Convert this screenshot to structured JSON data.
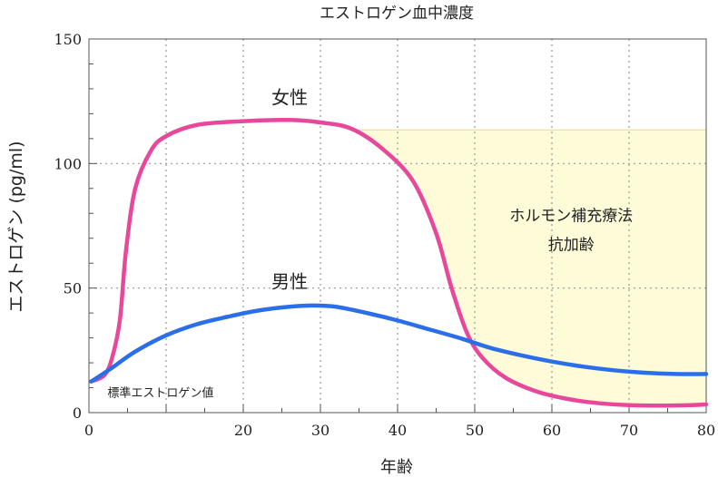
{
  "chart_data": {
    "type": "line",
    "title": "エストロゲン血中濃度",
    "xlabel": "年齢",
    "ylabel": "エストロゲン (pg/ml)",
    "xlim": [
      0,
      80
    ],
    "ylim": [
      0,
      150
    ],
    "x_ticks": [
      0,
      10,
      20,
      30,
      40,
      50,
      60,
      70,
      80
    ],
    "x_tick_labels": [
      "0",
      "",
      "20",
      "30",
      "40",
      "50",
      "60",
      "70",
      "80"
    ],
    "y_ticks": [
      0,
      50,
      100,
      150
    ],
    "grid": true,
    "series": [
      {
        "name": "女性",
        "color": "#e8489a",
        "points": [
          [
            0.3,
            12.5
          ],
          [
            2,
            15
          ],
          [
            3,
            22
          ],
          [
            4,
            37
          ],
          [
            4.8,
            65
          ],
          [
            6,
            90
          ],
          [
            8,
            105
          ],
          [
            10,
            111
          ],
          [
            14,
            115.5
          ],
          [
            20,
            117
          ],
          [
            26,
            117.5
          ],
          [
            30,
            116.5
          ],
          [
            34,
            114
          ],
          [
            38,
            106
          ],
          [
            42,
            93
          ],
          [
            45,
            72
          ],
          [
            47,
            50
          ],
          [
            49,
            32
          ],
          [
            51,
            22
          ],
          [
            54,
            14
          ],
          [
            58,
            8.5
          ],
          [
            62,
            5.5
          ],
          [
            66,
            3.8
          ],
          [
            70,
            3
          ],
          [
            74,
            2.8
          ],
          [
            78,
            3
          ],
          [
            80,
            3.3
          ]
        ]
      },
      {
        "name": "男性",
        "color": "#2a6fe8",
        "points": [
          [
            0.3,
            12.5
          ],
          [
            3,
            18
          ],
          [
            6,
            24.5
          ],
          [
            10,
            31
          ],
          [
            14,
            35.5
          ],
          [
            18,
            38.5
          ],
          [
            22,
            41
          ],
          [
            26,
            42.5
          ],
          [
            29,
            43
          ],
          [
            32,
            42.5
          ],
          [
            36,
            40
          ],
          [
            40,
            37
          ],
          [
            44,
            33.5
          ],
          [
            48,
            30
          ],
          [
            52,
            26
          ],
          [
            56,
            23
          ],
          [
            60,
            20.5
          ],
          [
            64,
            18.5
          ],
          [
            68,
            17
          ],
          [
            72,
            16
          ],
          [
            76,
            15.5
          ],
          [
            80,
            15.5
          ]
        ]
      }
    ],
    "shaded_region": {
      "label_lines": [
        "ホルモン補充療法",
        "抗加齢"
      ],
      "level": 113.5,
      "color": "#fdfbd8",
      "border_color": "#f5d590"
    },
    "annotations": [
      {
        "text": "女性",
        "x": 26,
        "y": 124
      },
      {
        "text": "男性",
        "x": 26,
        "y": 50
      },
      {
        "text": "標準エストロゲン値",
        "x": 2.4,
        "y": 6.3
      }
    ]
  }
}
